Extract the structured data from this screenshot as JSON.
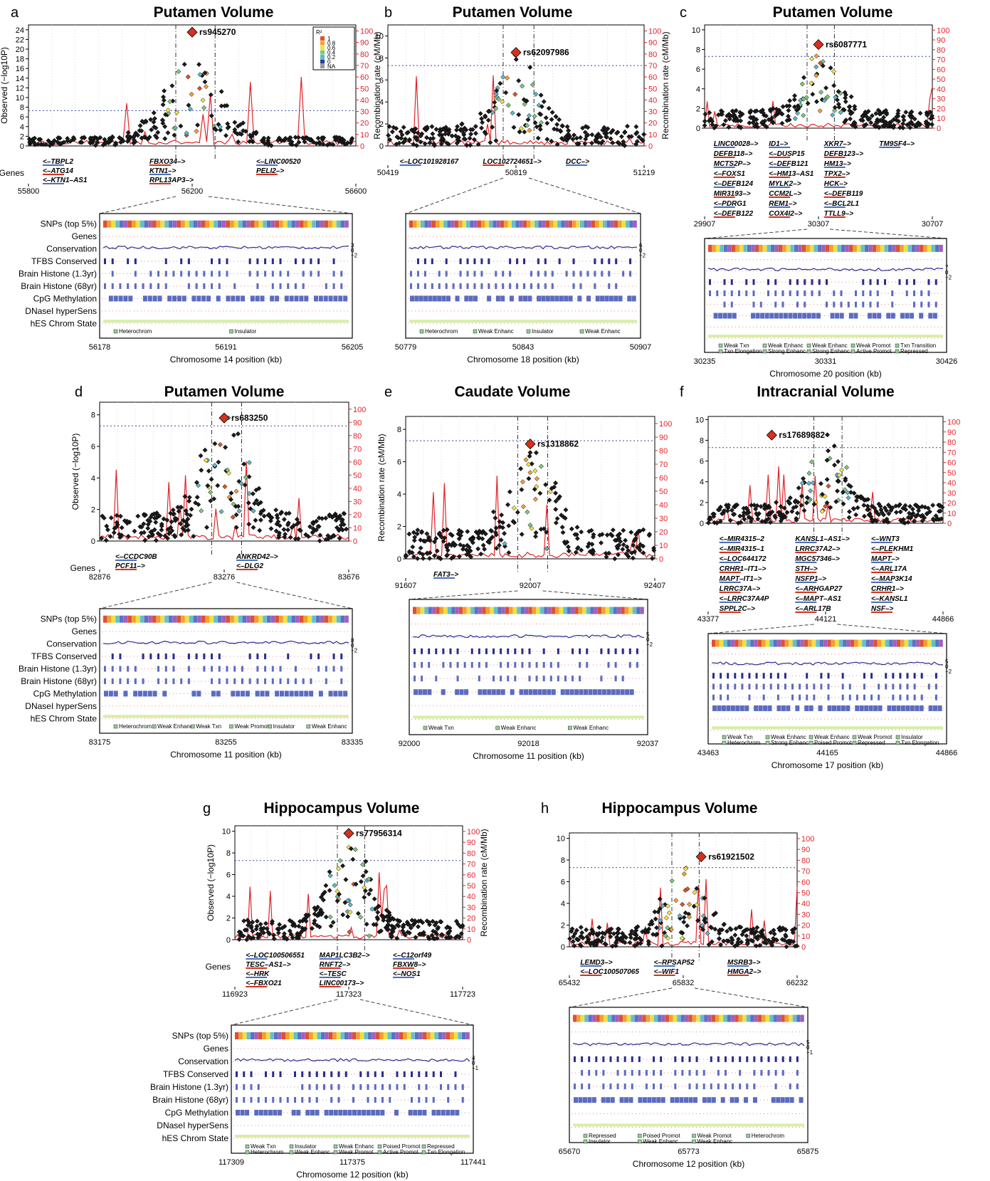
{
  "colors": {
    "recomb": "#e0242a",
    "ld_lead": "#d7301f",
    "threshold": "#3a48a8",
    "genes_blue": "#4a6fc2",
    "genes_red": "#d7301f"
  },
  "ld_legend": {
    "title": "R²",
    "levels": [
      "1",
      "0.8",
      "0.6",
      "0.4",
      "0.2",
      "0",
      "NA"
    ]
  },
  "chart_data": [
    {
      "panel": "a",
      "type": "scatter",
      "title": "Putamen Volume",
      "lead_snp": "rs945270",
      "ylabel": "Observed (−log10P)",
      "y2label": "Recombination rate (cM/Mb)",
      "yticks": [
        0,
        2,
        4,
        6,
        8,
        10,
        12,
        14,
        16,
        18,
        20,
        22,
        24
      ],
      "ylim": [
        0,
        25
      ],
      "y2ticks": [
        0,
        10,
        20,
        30,
        40,
        50,
        60,
        70,
        80,
        90,
        100
      ],
      "xticks": [
        "55800",
        "56200",
        "56600"
      ],
      "xlim": [
        55800,
        56600
      ],
      "lead_x": 56200,
      "lead_y": 23.5,
      "peak_y": 20,
      "genes": [
        "<–TBPL2",
        "<–ATG14",
        "<–KTN1–AS1",
        "FBXO34–>",
        "KTN1–>",
        "RPL13AP3–>",
        "<–LINC00520",
        "PELI2–>"
      ],
      "genes_label": "Genes",
      "tracks": [
        "SNPs (top 5%)",
        "Genes",
        "Conservation",
        "TFBS Conserved",
        "Brain Histone (1.3yr)",
        "Brain Histone (68yr)",
        "CpG Methylation",
        "DNaseI hyperSens",
        "hES Chrom State"
      ],
      "cons_ticks": [
        "3",
        "0",
        "−2"
      ],
      "state_legend": [
        "Heterochrom",
        "Insulator"
      ],
      "zoom_xticks": [
        "56178",
        "56191",
        "56205"
      ],
      "zoom_xlabel": "Chromosome 14 position (kb)"
    },
    {
      "panel": "b",
      "type": "scatter",
      "title": "Putamen Volume",
      "lead_snp": "rs62097986",
      "yticks": [
        0,
        2,
        4,
        6,
        8,
        10
      ],
      "ylim": [
        0,
        11
      ],
      "y2ticks": [
        0,
        10,
        20,
        30,
        40,
        50,
        60,
        70,
        80,
        90,
        100
      ],
      "xticks": [
        "50419",
        "50819",
        "51219"
      ],
      "xlim": [
        50419,
        51219
      ],
      "lead_x": 50819,
      "lead_y": 8.5,
      "peak_y": 8,
      "y2label": "Recombination rate (cM/Mb)",
      "genes": [
        "<–LOC101928167",
        "LOC102724651–>",
        "DCC–>"
      ],
      "cons_ticks": [
        "6",
        "0",
        "−2"
      ],
      "state_legend": [
        "Heterochrom",
        "Weak Enhanc",
        "Insulator",
        "Weak Enhanc"
      ],
      "zoom_xticks": [
        "50779",
        "50843",
        "50907"
      ],
      "zoom_xlabel": "Chromosome 18 position (kb)"
    },
    {
      "panel": "c",
      "type": "scatter",
      "title": "Putamen Volume",
      "lead_snp": "rs6087771",
      "yticks": [
        0,
        2,
        4,
        6,
        8,
        10
      ],
      "ylim": [
        0,
        10.5
      ],
      "y2ticks": [
        0,
        10,
        20,
        30,
        40,
        50,
        60,
        70,
        80,
        90,
        100
      ],
      "xticks": [
        "29907",
        "30307",
        "30707"
      ],
      "xlim": [
        29907,
        30707
      ],
      "lead_x": 30307,
      "lead_y": 8.5,
      "peak_y": 7.5,
      "genes": [
        "LINC00028–>",
        "DEFB118–>",
        "MCTS2P–>",
        "<–FOXS1",
        "<–DEFB124",
        "MIR3193–>",
        "<–PDRG1",
        "<–DEFB122",
        "ID1–>",
        "<–DUSP15",
        "<–DEFB121",
        "<–HM13–AS1",
        "MYLK2–>",
        "CCM2L–>",
        "REM1–>",
        "COX4I2–>",
        "XKR7–>",
        "DEFB123–>",
        "HM13–>",
        "TPX2–>",
        "HCK–>",
        "<–DEFB119",
        "<–BCL2L1",
        "TTLL9–>",
        "TM9SF4–>"
      ],
      "cons_ticks": [
        "7",
        "0",
        "−2"
      ],
      "state_legend": [
        "Weak Txn",
        "Weak Enhanc",
        "Weak Enhanc",
        "Weak Promot",
        "Txn Transition",
        "Txn Elongation",
        "Strong Enhanc",
        "Strong Enhanc",
        "Active Promot",
        "Repressed"
      ],
      "zoom_xticks": [
        "30235",
        "30331",
        "30426"
      ],
      "zoom_xlabel": "Chromosome 20 position (kb)"
    },
    {
      "panel": "d",
      "type": "scatter",
      "title": "Putamen Volume",
      "lead_snp": "rs683250",
      "ylabel": "Observed (−log10P)",
      "yticks": [
        0,
        2,
        4,
        6,
        8
      ],
      "ylim": [
        0,
        8.8
      ],
      "y2ticks": [
        0,
        10,
        20,
        30,
        40,
        50,
        60,
        70,
        80,
        90,
        100
      ],
      "xticks": [
        "82876",
        "83276",
        "83676"
      ],
      "xlim": [
        82876,
        83676
      ],
      "lead_x": 83276,
      "lead_y": 7.8,
      "peak_y": 7.8,
      "genes_label": "Genes",
      "genes": [
        "<–CCDC90B",
        "PCF11–>",
        "ANKRD42–>",
        "<–DLG2"
      ],
      "tracks": [
        "SNPs (top 5%)",
        "Genes",
        "Conservation",
        "TFBS Conserved",
        "Brain Histone (1.3yr)",
        "Brain Histone (68yr)",
        "CpG Methylation",
        "DNaseI hyperSens",
        "hES Chrom State"
      ],
      "cons_ticks": [
        "8",
        "0",
        "−2"
      ],
      "state_legend": [
        "Heterochrom",
        "Weak Enhanc",
        "Weak Txn",
        "Weak Promot",
        "Insulator",
        "Weak Enhanc"
      ],
      "zoom_xticks": [
        "83175",
        "83255",
        "83335"
      ],
      "zoom_xlabel": "Chromosome 11 position (kb)"
    },
    {
      "panel": "e",
      "type": "scatter",
      "title": "Caudate Volume",
      "lead_snp": "rs1318862",
      "ylabel": "Recombination rate (cM/Mb)",
      "yticks": [
        0,
        2,
        4,
        6,
        8
      ],
      "ylim": [
        0,
        8.8
      ],
      "y2ticks": [
        0,
        10,
        20,
        30,
        40,
        50,
        60,
        70,
        80,
        90,
        100
      ],
      "xticks": [
        "91607",
        "92007",
        "92407"
      ],
      "xlim": [
        91607,
        92407
      ],
      "lead_x": 92007,
      "lead_y": 7.1,
      "peak_y": 7,
      "genes": [
        "FAT3–>"
      ],
      "cons_ticks": [
        "5",
        "0",
        "−2"
      ],
      "state_legend": [
        "Weak Txn",
        "Weak Enhanc",
        "Weak Enhanc"
      ],
      "zoom_xticks": [
        "92000",
        "92018",
        "92037"
      ],
      "zoom_xlabel": "Chromosome 11 position (kb)"
    },
    {
      "panel": "f",
      "type": "scatter",
      "title": "Intracranial Volume",
      "lead_snp": "rs17689882",
      "yticks": [
        0,
        2,
        4,
        6,
        8,
        10
      ],
      "ylim": [
        0,
        10.3
      ],
      "y2ticks": [
        0,
        10,
        20,
        30,
        40,
        50,
        60,
        70,
        80,
        90,
        100
      ],
      "xticks": [
        "43377",
        "44121",
        "44866"
      ],
      "xlim": [
        43377,
        44866
      ],
      "lead_x": 43780,
      "lead_y": 8.5,
      "peak_y": 8,
      "genes": [
        "<–MIR4315–2",
        "<–MIR4315–1",
        "<–LOC644172",
        "CRHR1–IT1–>",
        "MAPT–IT1–>",
        "LRRC37A–>",
        "<–LRRC37A4P",
        "SPPL2C–>",
        "KANSL1–AS1–>",
        "LRRC37A2–>",
        "MGC57346–>",
        "STH–>",
        "NSFP1–>",
        "<–ARHGAP27",
        "<–MAPT–AS1",
        "<–ARL17B",
        "<–WNT3",
        "<–PLEKHM1",
        "MAPT–>",
        "<–ARL17A",
        "<–MAP3K14",
        "CRHR1–>",
        "<–KANSL1",
        "NSF–>"
      ],
      "cons_ticks": [
        "5",
        "0",
        "−2"
      ],
      "state_legend": [
        "Weak Txn",
        "Weak Enhanc",
        "Weak Enhanc",
        "Weak Promot",
        "Insulator",
        "Heterochrom",
        "Strong Enhanc",
        "Poised Promot",
        "Repressed",
        "Txn Elongation"
      ],
      "zoom_xticks": [
        "43463",
        "44165",
        "44866"
      ],
      "zoom_xlabel": "Chromosome 17 position (kb)"
    },
    {
      "panel": "g",
      "type": "scatter",
      "title": "Hippocampus Volume",
      "lead_snp": "rs77956314",
      "ylabel": "Observed (−log10P)",
      "y2label": "Recombination rate (cM/Mb)",
      "yticks": [
        0,
        2,
        4,
        6,
        8,
        10
      ],
      "ylim": [
        0,
        10.5
      ],
      "y2ticks": [
        0,
        10,
        20,
        30,
        40,
        50,
        60,
        70,
        80,
        90,
        100
      ],
      "xticks": [
        "116923",
        "117323",
        "117723"
      ],
      "xlim": [
        116923,
        117723
      ],
      "lead_x": 117323,
      "lead_y": 9.8,
      "peak_y": 9.5,
      "genes_label": "Genes",
      "genes": [
        "<–LOC100506551",
        "TESC–AS1–>",
        "<–HRK",
        "<–FBXO21",
        "MAP1LC3B2–>",
        "RNFT2–>",
        "<–TESC",
        "LINC00173–>",
        "<–C12orf49",
        "FBXW8–>",
        "<–NOS1"
      ],
      "tracks": [
        "SNPs (top 5%)",
        "Genes",
        "Conservation",
        "TFBS Conserved",
        "Brain Histone (1.3yr)",
        "Brain Histone (68yr)",
        "CpG Methylation",
        "DNaseI hyperSens",
        "hES Chrom State"
      ],
      "cons_ticks": [
        "4",
        "0",
        "−1"
      ],
      "state_legend": [
        "Weak Txn",
        "Insulator",
        "Weak Enhanc",
        "Poised Promot",
        "Repressed",
        "Heterochrom",
        "Weak Enhanc",
        "Weak Promot",
        "Active Promot",
        "Txn Elongation"
      ],
      "zoom_xticks": [
        "117309",
        "117375",
        "117441"
      ],
      "zoom_xlabel": "Chromosome 12 position (kb)"
    },
    {
      "panel": "h",
      "type": "scatter",
      "title": "Hippocampus Volume",
      "lead_snp": "rs61921502",
      "yticks": [
        0,
        2,
        4,
        6,
        8,
        10
      ],
      "ylim": [
        0,
        10.5
      ],
      "y2ticks": [
        0,
        10,
        20,
        30,
        40,
        50,
        60,
        70,
        80,
        90,
        100
      ],
      "xticks": [
        "65432",
        "65832",
        "66232"
      ],
      "xlim": [
        65432,
        66232
      ],
      "lead_x": 65895,
      "lead_y": 8.3,
      "peak_y": 7.5,
      "genes": [
        "LEMD3–>",
        "<–LOC100507065",
        "<–RPSAP52",
        "<–WIF1",
        "MSRB3–>",
        "HMGA2–>"
      ],
      "cons_ticks": [
        "5",
        "0",
        "−1"
      ],
      "state_legend": [
        "Repressed",
        "Poised Promot",
        "Weak Promot",
        "Heterochrom",
        "Insulator",
        "Weak Enhanc",
        "Weak Enhanc"
      ],
      "zoom_xticks": [
        "65670",
        "65773",
        "65875"
      ],
      "zoom_xlabel": "Chromosome 12 position (kb)"
    }
  ]
}
